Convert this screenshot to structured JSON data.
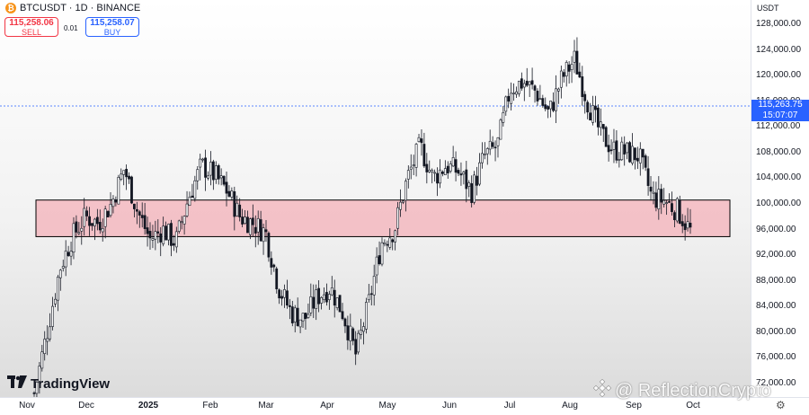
{
  "header": {
    "symbol_title": "BTCUSDT · 1D · BINANCE",
    "sell_price": "115,258.06",
    "sell_label": "SELL",
    "spread": "0.01",
    "buy_price": "115,258.07",
    "buy_label": "BUY"
  },
  "price_axis": {
    "currency": "USDT",
    "current_price": "115,263.75",
    "countdown": "15:07:07"
  },
  "branding": {
    "logo_text": "TradingView",
    "watermark": "@ ReflectionCrypto"
  },
  "colors": {
    "candle": "#131722",
    "zone_fill": "#f3b9bf",
    "zone_border": "#000000",
    "current_price_line": "#2962ff",
    "current_price_label_bg": "#2962ff"
  },
  "chart_data": {
    "type": "candlestick",
    "symbol": "BTCUSDT",
    "timeframe": "1D",
    "exchange": "BINANCE",
    "x_tick_labels": [
      "Nov",
      "Dec",
      "2025",
      "Feb",
      "Mar",
      "Apr",
      "May",
      "Jun",
      "Jul",
      "Aug",
      "Sep",
      "Oct"
    ],
    "y_tick_values": [
      128000,
      124000,
      120000,
      116000,
      112000,
      108000,
      104000,
      100000,
      96000,
      92000,
      88000,
      84000,
      80000,
      76000,
      72000
    ],
    "y_tick_labels": [
      "128,000.00",
      "124,000.00",
      "120,000.00",
      "116,000.00",
      "112,000.00",
      "108,000.00",
      "104,000.00",
      "100,000.00",
      "96,000.00",
      "92,000.00",
      "88,000.00",
      "84,000.00",
      "80,000.00",
      "76,000.00",
      "72,000.00"
    ],
    "ylim": [
      70200,
      131000
    ],
    "current_price": 115263.75,
    "support_zone": {
      "low": 94900,
      "high": 100600,
      "from": "Nov",
      "to": "Oct"
    },
    "price_path": [
      {
        "t": "Nov",
        "close": 70500
      },
      {
        "t": "Nov",
        "close": 80000
      },
      {
        "t": "Nov",
        "close": 90000
      },
      {
        "t": "Nov",
        "close": 95000
      },
      {
        "t": "Nov",
        "close": 98000
      },
      {
        "t": "Dec",
        "close": 97000
      },
      {
        "t": "Dec",
        "close": 100000
      },
      {
        "t": "Dec",
        "close": 105500
      },
      {
        "t": "Dec",
        "close": 99000
      },
      {
        "t": "Dec",
        "close": 94500
      },
      {
        "t": "Dec",
        "close": 96000
      },
      {
        "t": "2025",
        "close": 94000
      },
      {
        "t": "2025",
        "close": 101000
      },
      {
        "t": "2025",
        "close": 106000
      },
      {
        "t": "2025",
        "close": 104500
      },
      {
        "t": "Feb",
        "close": 102000
      },
      {
        "t": "Feb",
        "close": 98000
      },
      {
        "t": "Feb",
        "close": 97000
      },
      {
        "t": "Feb",
        "close": 95500
      },
      {
        "t": "Mar",
        "close": 87000
      },
      {
        "t": "Mar",
        "close": 83000
      },
      {
        "t": "Mar",
        "close": 82000
      },
      {
        "t": "Mar",
        "close": 85500
      },
      {
        "t": "Mar",
        "close": 87000
      },
      {
        "t": "Apr",
        "close": 83000
      },
      {
        "t": "Apr",
        "close": 76500
      },
      {
        "t": "Apr",
        "close": 84500
      },
      {
        "t": "Apr",
        "close": 94000
      },
      {
        "t": "May",
        "close": 96000
      },
      {
        "t": "May",
        "close": 104000
      },
      {
        "t": "May",
        "close": 109000
      },
      {
        "t": "May",
        "close": 104000
      },
      {
        "t": "Jun",
        "close": 106000
      },
      {
        "t": "Jun",
        "close": 105000
      },
      {
        "t": "Jun",
        "close": 102000
      },
      {
        "t": "Jun",
        "close": 107500
      },
      {
        "t": "Jul",
        "close": 109000
      },
      {
        "t": "Jul",
        "close": 118000
      },
      {
        "t": "Jul",
        "close": 119000
      },
      {
        "t": "Jul",
        "close": 117500
      },
      {
        "t": "Aug",
        "close": 114000
      },
      {
        "t": "Aug",
        "close": 119500
      },
      {
        "t": "Aug",
        "close": 122500
      },
      {
        "t": "Aug",
        "close": 116000
      },
      {
        "t": "Aug",
        "close": 111000
      },
      {
        "t": "Sep",
        "close": 108500
      },
      {
        "t": "Sep",
        "close": 108000
      },
      {
        "t": "Sep",
        "close": 107500
      },
      {
        "t": "Sep",
        "close": 101000
      },
      {
        "t": "Sep",
        "close": 100500
      },
      {
        "t": "Oct",
        "close": 99000
      },
      {
        "t": "Oct",
        "close": 95800
      }
    ]
  }
}
